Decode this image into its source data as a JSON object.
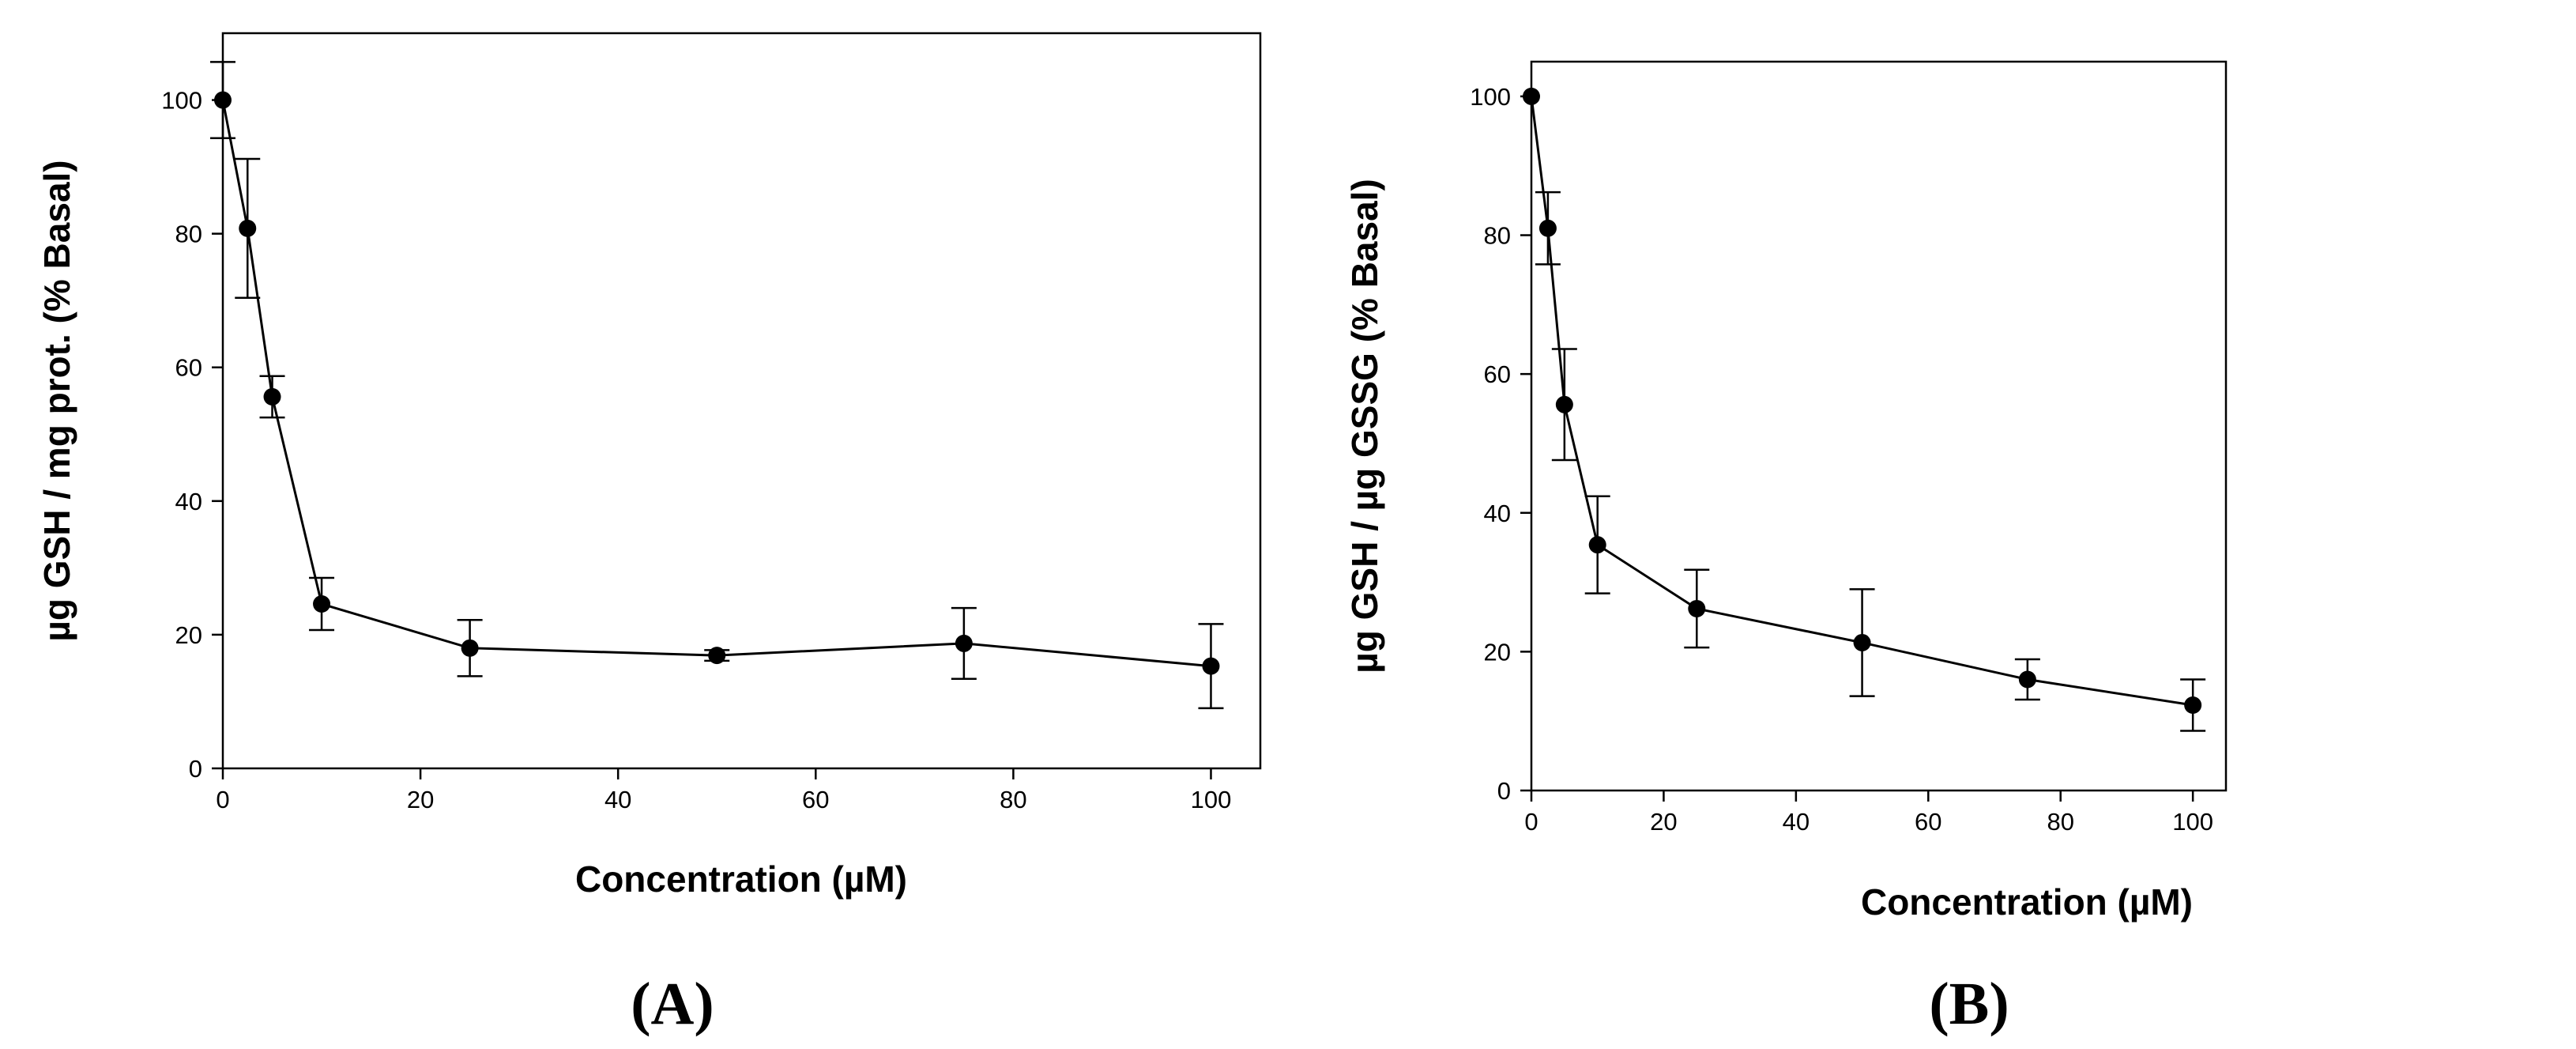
{
  "chart_data": [
    {
      "type": "line",
      "panel_label": "(A)",
      "xlabel": "Concentration (µM)",
      "ylabel": "µg GSH / mg prot. (% Basal)",
      "xlim": [
        0,
        105
      ],
      "ylim": [
        0,
        110
      ],
      "xticks": [
        0,
        20,
        40,
        60,
        80,
        100
      ],
      "yticks": [
        0,
        20,
        40,
        60,
        80,
        100
      ],
      "series": [
        {
          "name": "GSH",
          "x": [
            0,
            2.5,
            5,
            10,
            25,
            50,
            75,
            100
          ],
          "y": [
            100,
            80.8,
            55.6,
            24.6,
            18.0,
            16.9,
            18.7,
            15.3
          ],
          "err": [
            5.7,
            10.4,
            3.1,
            3.9,
            4.2,
            0.8,
            5.3,
            6.3
          ]
        }
      ]
    },
    {
      "type": "line",
      "panel_label": "(B)",
      "xlabel": "Concentration (µM)",
      "ylabel": "µg GSH / µg GSSG (% Basal)",
      "xlim": [
        0,
        105
      ],
      "ylim": [
        0,
        105
      ],
      "xticks": [
        0,
        20,
        40,
        60,
        80,
        100
      ],
      "yticks": [
        0,
        20,
        40,
        60,
        80,
        100
      ],
      "series": [
        {
          "name": "GSH/GSSG",
          "x": [
            0,
            2.5,
            5,
            10,
            25,
            50,
            75,
            100
          ],
          "y": [
            100,
            81.0,
            55.6,
            35.4,
            26.2,
            21.3,
            16.0,
            12.3
          ],
          "err": [
            0,
            5.2,
            8.0,
            7.0,
            5.6,
            7.7,
            2.9,
            3.7
          ]
        }
      ]
    }
  ]
}
